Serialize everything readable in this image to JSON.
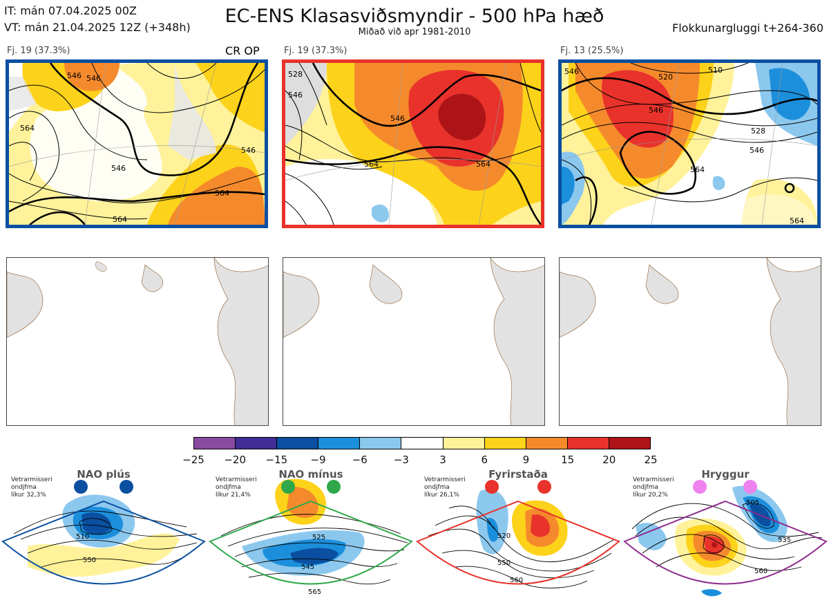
{
  "header": {
    "it_line": "IT: mán 07.04.2025 00Z",
    "vt_line": "VT: mán 21.04.2025 12Z  (+348h)",
    "title": "EC-ENS Klasasviðsmyndir - 500 hPa hæð",
    "subtitle": "Miðað við apr 1981-2010",
    "window": "Flokkunargluggi t+264-360"
  },
  "panels": [
    {
      "label": "Fj. 19 (37.3%)",
      "tag": "CR OP",
      "border": "#0a4fa0",
      "contour_labels": [
        "546",
        "546",
        "564",
        "546",
        "546",
        "564",
        "564"
      ]
    },
    {
      "label": "Fj. 19 (37.3%)",
      "tag": "",
      "border": "#e8322b",
      "contour_labels": [
        "528",
        "546",
        "546",
        "564",
        "564"
      ]
    },
    {
      "label": "Fj. 13 (25.5%)",
      "tag": "",
      "border": "#0a4fa0",
      "contour_labels": [
        "546",
        "520",
        "510",
        "546",
        "528",
        "546",
        "564",
        "564"
      ]
    }
  ],
  "colorbar": {
    "ticks": [
      "−25",
      "−20",
      "−15",
      "−9",
      "−6",
      "−3",
      "3",
      "6",
      "9",
      "15",
      "20",
      "25"
    ],
    "colors": [
      "#8a4aa0",
      "#402d96",
      "#0a4fa0",
      "#1c8fdc",
      "#8cc8ee",
      "#ffffff",
      "#fff29a",
      "#fdd21a",
      "#f58a2c",
      "#e8322b",
      "#ad1417"
    ]
  },
  "regimes": [
    {
      "title": "NAO plús",
      "note": [
        "Vetrarmisseri",
        "ondjfma",
        "líkur 32,3%"
      ],
      "border": "#0a4fa0",
      "dot": "#0a4fa0",
      "contour_labels": [
        "510",
        "550"
      ]
    },
    {
      "title": "NAO mínus",
      "note": [
        "Vetrarmisseri",
        "ondjfma",
        "líkur 21,4%"
      ],
      "border": "#2ea84a",
      "dot": "#2ea84a",
      "contour_labels": [
        "525",
        "545",
        "565"
      ]
    },
    {
      "title": "Fyrirstaða",
      "note": [
        "Vetrarmisseri",
        "ondjfma",
        "líkur 26,1%"
      ],
      "border": "#e8322b",
      "dot": "#e8322b",
      "contour_labels": [
        "520",
        "550",
        "560"
      ]
    },
    {
      "title": "Hryggur",
      "note": [
        "Vetrarmisseri",
        "ondjfma",
        "líkur 20,2%"
      ],
      "border": "#8e2a8e",
      "dot": "#ee82ee",
      "contour_labels": [
        "505",
        "535",
        "560"
      ]
    }
  ]
}
